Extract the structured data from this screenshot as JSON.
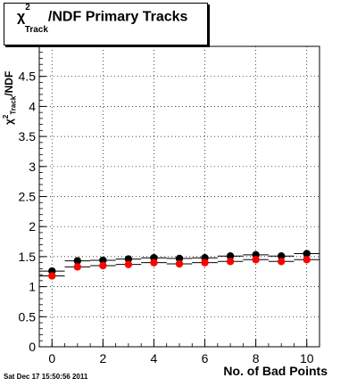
{
  "title": {
    "chi": "χ",
    "sup": "2",
    "sub": "Track",
    "rest": "/NDF Primary Tracks"
  },
  "ylabel": {
    "chi": "χ",
    "sup": "2",
    "sub": "Track",
    "rest": "/NDF"
  },
  "xlabel": "No. of Bad Points",
  "datestamp": "Sat Dec 17 15:50:56 2011",
  "colors": {
    "series_black": "#000000",
    "series_red": "#ff0000",
    "grid": "#000000"
  },
  "chart_data": {
    "type": "scatter",
    "x": [
      0,
      1,
      2,
      3,
      4,
      5,
      6,
      7,
      8,
      9,
      10
    ],
    "xlim": [
      -0.5,
      10.5
    ],
    "ylim": [
      0,
      5
    ],
    "xticks": [
      "0",
      "2",
      "4",
      "6",
      "8",
      "10"
    ],
    "yticks": [
      "0",
      "0.5",
      "1",
      "1.5",
      "2",
      "2.5",
      "3",
      "3.5",
      "4",
      "4.5"
    ],
    "grid": true,
    "series": [
      {
        "color": "#000000",
        "values": [
          1.26,
          1.43,
          1.44,
          1.46,
          1.48,
          1.47,
          1.48,
          1.51,
          1.53,
          1.51,
          1.55
        ]
      },
      {
        "color": "#ff0000",
        "values": [
          1.18,
          1.33,
          1.35,
          1.37,
          1.4,
          1.38,
          1.4,
          1.42,
          1.45,
          1.42,
          1.45
        ]
      }
    ]
  }
}
